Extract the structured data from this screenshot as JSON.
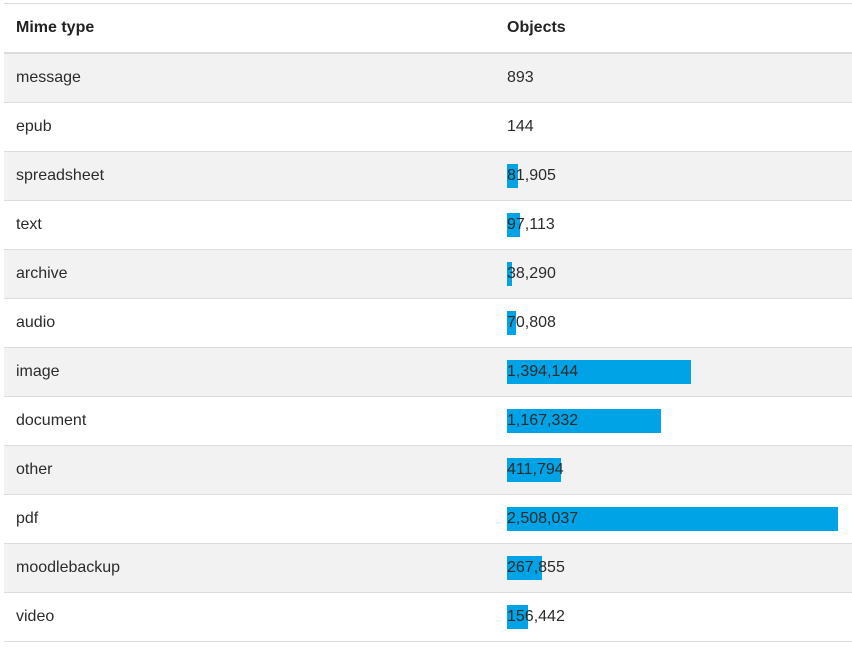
{
  "table": {
    "headers": {
      "mime_type": "Mime type",
      "objects": "Objects"
    },
    "bar_color": "#00a3e6",
    "max_value": 2508037,
    "rows": [
      {
        "mime_type": "message",
        "objects": "893",
        "value": 893
      },
      {
        "mime_type": "epub",
        "objects": "144",
        "value": 144
      },
      {
        "mime_type": "spreadsheet",
        "objects": "81,905",
        "value": 81905
      },
      {
        "mime_type": "text",
        "objects": "97,113",
        "value": 97113
      },
      {
        "mime_type": "archive",
        "objects": "38,290",
        "value": 38290
      },
      {
        "mime_type": "audio",
        "objects": "70,808",
        "value": 70808
      },
      {
        "mime_type": "image",
        "objects": "1,394,144",
        "value": 1394144
      },
      {
        "mime_type": "document",
        "objects": "1,167,332",
        "value": 1167332
      },
      {
        "mime_type": "other",
        "objects": "411,794",
        "value": 411794
      },
      {
        "mime_type": "pdf",
        "objects": "2,508,037",
        "value": 2508037
      },
      {
        "mime_type": "moodlebackup",
        "objects": "267,855",
        "value": 267855
      },
      {
        "mime_type": "video",
        "objects": "156,442",
        "value": 156442
      }
    ]
  }
}
